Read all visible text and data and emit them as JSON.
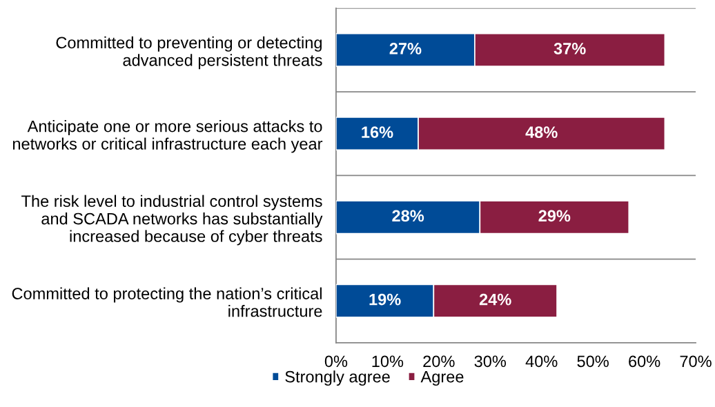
{
  "chart_data": {
    "type": "bar",
    "orientation": "horizontal",
    "stacked": true,
    "categories": [
      "Committed to preventing or detecting\nadvanced persistent threats",
      "Anticipate one or more serious attacks to\nnetworks or critical infrastructure each year",
      "The risk level to industrial control systems\nand SCADA networks has substantially\nincreased because of cyber threats",
      "Committed to protecting the nation’s critical\ninfrastructure"
    ],
    "series": [
      {
        "name": "Strongly agree",
        "color": "#004B97",
        "values": [
          27,
          16,
          28,
          19
        ],
        "value_labels": [
          "27%",
          "16%",
          "28%",
          "19%"
        ]
      },
      {
        "name": "Agree",
        "color": "#8A1E41",
        "values": [
          37,
          48,
          29,
          24
        ],
        "value_labels": [
          "37%",
          "48%",
          "29%",
          "24%"
        ]
      }
    ],
    "xlim": [
      0,
      70
    ],
    "xticks": [
      {
        "value": 0,
        "label": "0%"
      },
      {
        "value": 10,
        "label": "10%"
      },
      {
        "value": 20,
        "label": "20%"
      },
      {
        "value": 30,
        "label": "30%"
      },
      {
        "value": 40,
        "label": "40%"
      },
      {
        "value": 50,
        "label": "50%"
      },
      {
        "value": 60,
        "label": "60%"
      },
      {
        "value": 70,
        "label": "70%"
      }
    ],
    "grid": "y",
    "legend": "bottom"
  }
}
